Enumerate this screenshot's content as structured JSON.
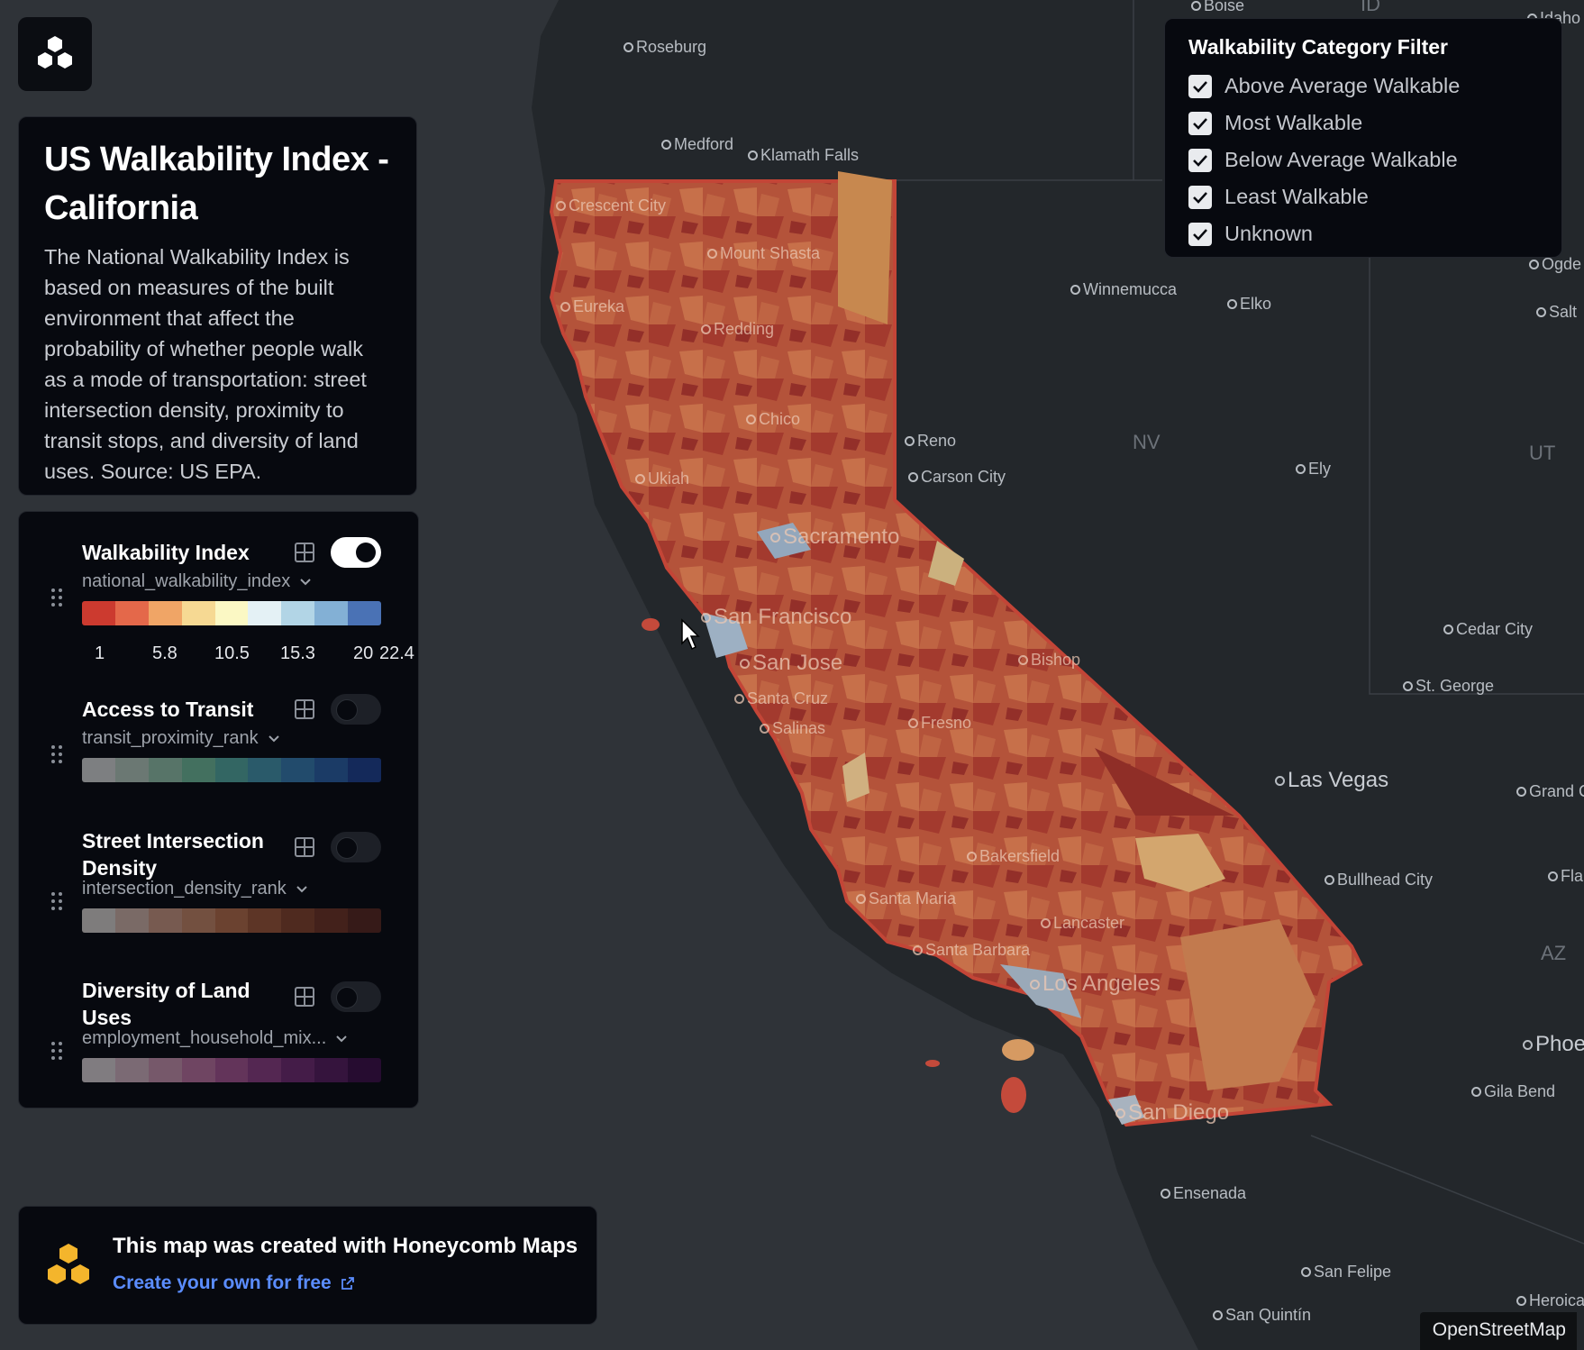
{
  "app": {
    "logo_icon": "honeycomb-logo-icon"
  },
  "title_card": {
    "title": "US Walkability Index - California",
    "description": "The National Walkability Index is based on measures of the built environment that affect the probability of whether people walk as a mode of transportation: street intersection density, proximity to transit stops, and diversity of land uses. Source: US EPA."
  },
  "layers": [
    {
      "name": "Walkability Index",
      "field": "national_walkability_index",
      "enabled": true,
      "ramp": [
        "#cc3a2f",
        "#e4684a",
        "#f0a566",
        "#f6d993",
        "#fbf8c4",
        "#e4f1f5",
        "#b2d5e6",
        "#83b0d5",
        "#4a72b5"
      ],
      "ticks": [
        "1",
        "5.8",
        "10.5",
        "15.3",
        "20",
        "22.4"
      ]
    },
    {
      "name": "Access to Transit",
      "field": "transit_proximity_rank",
      "enabled": false,
      "ramp": [
        "#7d7f81",
        "#6b7873",
        "#577468",
        "#43705f",
        "#336663",
        "#2a5a6a",
        "#224b6c",
        "#1b3b66",
        "#14295a"
      ]
    },
    {
      "name": "Street Intersection Density",
      "field": "intersection_density_rank",
      "enabled": false,
      "ramp": [
        "#7e7c7c",
        "#7a6a66",
        "#775a50",
        "#735040",
        "#6b4230",
        "#5d3526",
        "#4f2a1f",
        "#43211b",
        "#361a18"
      ]
    },
    {
      "name": "Diversity of Land Uses",
      "field": "employment_household_mix...",
      "enabled": false,
      "ramp": [
        "#807c80",
        "#7b6a74",
        "#76586a",
        "#6f4562",
        "#63345a",
        "#542752",
        "#441c48",
        "#35143d",
        "#260c30"
      ]
    }
  ],
  "filter": {
    "title": "Walkability Category Filter",
    "options": [
      {
        "label": "Above Average Walkable",
        "checked": true
      },
      {
        "label": "Most Walkable",
        "checked": true
      },
      {
        "label": "Below Average Walkable",
        "checked": true
      },
      {
        "label": "Least Walkable",
        "checked": true
      },
      {
        "label": "Unknown",
        "checked": true
      }
    ]
  },
  "promo": {
    "title": "This map was created with Honeycomb Maps",
    "link": "Create your own for free",
    "link_icon": "external-link-icon"
  },
  "attribution": "OpenStreetMap",
  "map_labels": {
    "boise": "Boise",
    "idaho": "Idaho",
    "id": "ID",
    "roseburg": "Roseburg",
    "medford": "Medford",
    "klamath_falls": "Klamath Falls",
    "crescent_city": "Crescent City",
    "mount_shasta": "Mount Shasta",
    "eureka": "Eureka",
    "redding": "Redding",
    "chico": "Chico",
    "ukiah": "Ukiah",
    "sacramento": "Sacramento",
    "san_francisco": "San Francisco",
    "san_jose": "San Jose",
    "santa_cruz": "Santa Cruz",
    "salinas": "Salinas",
    "fresno": "Fresno",
    "bishop": "Bishop",
    "bakersfield": "Bakersfield",
    "santa_maria": "Santa Maria",
    "lancaster": "Lancaster",
    "santa_barbara": "Santa Barbara",
    "los_angeles": "Los Angeles",
    "san_diego": "San Diego",
    "winnemucca": "Winnemucca",
    "elko": "Elko",
    "reno": "Reno",
    "carson_city": "Carson City",
    "nv": "NV",
    "ely": "Ely",
    "ut": "UT",
    "cedar_city": "Cedar City",
    "st_george": "St. George",
    "las_vegas": "Las Vegas",
    "grand_c": "Grand C",
    "bullhead_city": "Bullhead City",
    "fla": "Fla",
    "az": "AZ",
    "phoe": "Phoe",
    "gila_bend": "Gila Bend",
    "ensenada": "Ensenada",
    "san_felipe": "San Felipe",
    "san_quintin": "San Quintín",
    "heroica": "Heroica",
    "ogde": "Ogde",
    "salt": "Salt"
  },
  "colors": {
    "map_bg": "#2f3338",
    "land_dark": "#23272b",
    "california_fill": "#b5533a",
    "accent_link": "#5b8dff"
  }
}
